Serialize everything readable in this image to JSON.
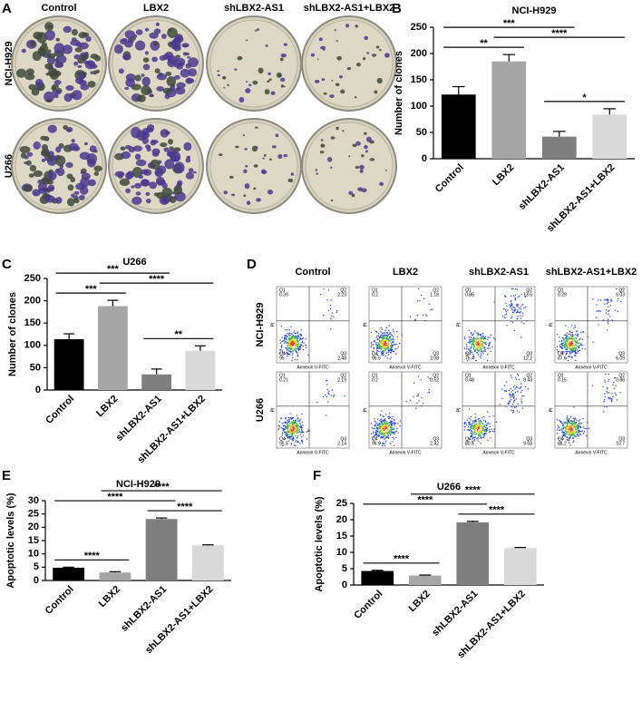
{
  "panels": {
    "A": {
      "letter": "A",
      "columns": [
        "Control",
        "LBX2",
        "shLBX2-AS1",
        "shLBX2-AS1+LBX2"
      ],
      "rows": [
        "NCI-H929",
        "U266"
      ]
    },
    "D": {
      "letter": "D",
      "columns": [
        "Control",
        "LBX2",
        "shLBX2-AS1",
        "shLBX2-AS1+LBX2"
      ],
      "rows": [
        "NCI-H929",
        "U266"
      ],
      "x_label": "Annexin V-FITC",
      "y_label": "PI",
      "quadrant_names": [
        "Q1",
        "Q2",
        "Q3",
        "Q4"
      ],
      "values": [
        [
          [
            0.39,
            2.23,
            2.48,
            95.0
          ],
          [
            0.2,
            1.18,
            2.08,
            96.5
          ],
          [
            0.86,
            13.6,
            12.2,
            76.4
          ],
          [
            0.29,
            6.03,
            6.09,
            87.6
          ]
        ],
        [
          [
            0.21,
            2.19,
            2.14,
            95.5
          ],
          [
            0.2,
            0.52,
            2.42,
            96.9
          ],
          [
            0.48,
            9.43,
            9.63,
            80.5
          ],
          [
            0.15,
            0.88,
            10.7,
            88.2
          ]
        ]
      ]
    }
  },
  "chart_data": [
    {
      "type": "bar",
      "panel": "B",
      "title": "NCI-H929",
      "y_label": "Number of clones",
      "categories": [
        "Control",
        "LBX2",
        "shLBX2-AS1",
        "shLBX2-AS1+LBX2"
      ],
      "values": [
        122,
        185,
        42,
        84
      ],
      "errors": [
        15,
        13,
        10,
        11
      ],
      "colors": [
        "#000000",
        "#a6a6a6",
        "#7f7f7f",
        "#d9d9d9"
      ],
      "ylim": [
        0,
        250
      ],
      "yticks": [
        0,
        50,
        100,
        150,
        200,
        250
      ],
      "comparisons": [
        {
          "from": "shLBX2-AS1",
          "to": "shLBX2-AS1+LBX2",
          "label": "*"
        },
        {
          "from": "Control",
          "to": "LBX2",
          "label": "**"
        },
        {
          "from": "LBX2",
          "to": "shLBX2-AS1+LBX2",
          "label": "****"
        },
        {
          "from": "Control",
          "to": "shLBX2-AS1",
          "label": "***"
        }
      ]
    },
    {
      "type": "bar",
      "panel": "C",
      "title": "U266",
      "y_label": "Number of clones",
      "categories": [
        "Control",
        "LBX2",
        "shLBX2-AS1",
        "shLBX2-AS1+LBX2"
      ],
      "values": [
        114,
        188,
        35,
        88
      ],
      "errors": [
        12,
        13,
        12,
        11
      ],
      "colors": [
        "#000000",
        "#a6a6a6",
        "#7f7f7f",
        "#d9d9d9"
      ],
      "ylim": [
        0,
        250
      ],
      "yticks": [
        0,
        50,
        100,
        150,
        200,
        250
      ],
      "comparisons": [
        {
          "from": "shLBX2-AS1",
          "to": "shLBX2-AS1+LBX2",
          "label": "**"
        },
        {
          "from": "Control",
          "to": "LBX2",
          "label": "***"
        },
        {
          "from": "LBX2",
          "to": "shLBX2-AS1+LBX2",
          "label": "****"
        },
        {
          "from": "Control",
          "to": "shLBX2-AS1",
          "label": "***"
        }
      ]
    },
    {
      "type": "bar",
      "panel": "E",
      "title": "NCI-H929",
      "y_label": "Apoptotic levels (%)",
      "categories": [
        "Control",
        "LBX2",
        "shLBX2-AS1",
        "shLBX2-AS1+LBX2"
      ],
      "values": [
        4.8,
        3.0,
        23.1,
        13.2
      ],
      "errors": [
        0.2,
        0.3,
        0.4,
        0.2
      ],
      "colors": [
        "#000000",
        "#a6a6a6",
        "#7f7f7f",
        "#d9d9d9"
      ],
      "ylim": [
        0,
        30
      ],
      "yticks": [
        0,
        5,
        10,
        15,
        20,
        25,
        30
      ],
      "comparisons": [
        {
          "from": "Control",
          "to": "LBX2",
          "label": "****"
        },
        {
          "from": "shLBX2-AS1",
          "to": "shLBX2-AS1+LBX2",
          "label": "****"
        },
        {
          "from": "Control",
          "to": "shLBX2-AS1",
          "label": "****"
        },
        {
          "from": "LBX2",
          "to": "shLBX2-AS1+LBX2",
          "label": "****"
        }
      ]
    },
    {
      "type": "bar",
      "panel": "F",
      "title": "U266",
      "y_label": "Apoptotic levels (%)",
      "categories": [
        "Control",
        "LBX2",
        "shLBX2-AS1",
        "shLBX2-AS1+LBX2"
      ],
      "values": [
        4.3,
        2.9,
        19.2,
        11.3
      ],
      "errors": [
        0.2,
        0.15,
        0.3,
        0.2
      ],
      "colors": [
        "#000000",
        "#a6a6a6",
        "#7f7f7f",
        "#d9d9d9"
      ],
      "ylim": [
        0,
        25
      ],
      "yticks": [
        0,
        5,
        10,
        15,
        20,
        25
      ],
      "comparisons": [
        {
          "from": "Control",
          "to": "LBX2",
          "label": "****"
        },
        {
          "from": "shLBX2-AS1",
          "to": "shLBX2-AS1+LBX2",
          "label": "****"
        },
        {
          "from": "Control",
          "to": "shLBX2-AS1",
          "label": "****"
        },
        {
          "from": "LBX2",
          "to": "shLBX2-AS1+LBX2",
          "label": "****"
        }
      ]
    }
  ]
}
